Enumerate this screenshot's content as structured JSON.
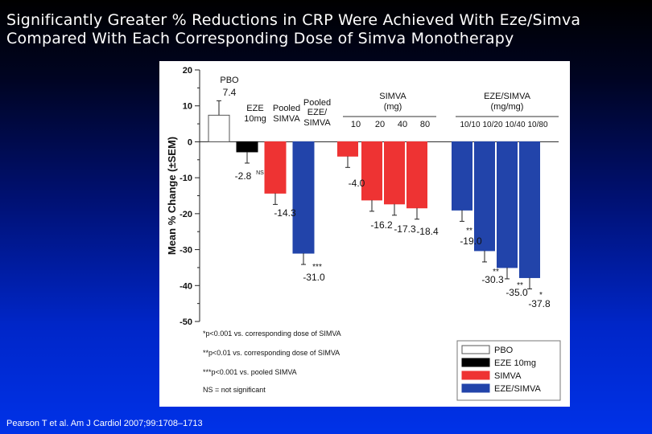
{
  "slide": {
    "title_line1": "Significantly Greater % Reductions in CRP Were Achieved With Eze/Simva",
    "title_line2": "Compared With Each Corresponding Dose of Simva Monotherapy",
    "citation": "Pearson T et al. Am J Cardiol 2007;99:1708–1713"
  },
  "colors": {
    "PBO": "#ffffff",
    "EZE": "#000000",
    "SIMVA": "#ee3333",
    "EZE/SIMVA": "#2244aa"
  },
  "chart_data": {
    "type": "bar",
    "ylabel": "Mean % Change (±SEM)",
    "ylim": [
      -50,
      20
    ],
    "yticks": [
      20,
      10,
      0,
      -10,
      -20,
      -30,
      -40,
      -50
    ],
    "bars": [
      {
        "group": "PBO",
        "category": "PBO",
        "value": 7.4,
        "label": "7.4",
        "sig": ""
      },
      {
        "group": "EZE",
        "category": "EZE 10mg",
        "value": -2.8,
        "label": "-2.8",
        "sig": "NS"
      },
      {
        "group": "SIMVA",
        "category": "Pooled SIMVA",
        "value": -14.3,
        "label": "-14.3",
        "sig": ""
      },
      {
        "group": "EZE/SIMVA",
        "category": "Pooled EZE/SIMVA",
        "value": -31.0,
        "label": "-31.0",
        "sig": "***"
      },
      {
        "group": "SIMVA",
        "category": "10",
        "value": -4.0,
        "label": "-4.0",
        "sig": ""
      },
      {
        "group": "SIMVA",
        "category": "20",
        "value": -16.2,
        "label": "-16.2",
        "sig": ""
      },
      {
        "group": "SIMVA",
        "category": "40",
        "value": -17.3,
        "label": "-17.3",
        "sig": ""
      },
      {
        "group": "SIMVA",
        "category": "80",
        "value": -18.4,
        "label": "-18.4",
        "sig": ""
      },
      {
        "group": "EZE/SIMVA",
        "category": "10/10",
        "value": -19.0,
        "label": "-19.0",
        "sig": "**"
      },
      {
        "group": "EZE/SIMVA",
        "category": "10/20",
        "value": -30.3,
        "label": "-30.3",
        "sig": "**"
      },
      {
        "group": "EZE/SIMVA",
        "category": "10/40",
        "value": -35.0,
        "label": "-35.0",
        "sig": "**"
      },
      {
        "group": "EZE/SIMVA",
        "category": "10/80",
        "value": -37.8,
        "label": "-37.8",
        "sig": "*"
      }
    ],
    "headers": {
      "pbo": "PBO",
      "eze_line1": "EZE",
      "eze_line2": "10mg",
      "pooled_simva_line1": "Pooled",
      "pooled_simva_line2": "SIMVA",
      "pooled_combo_line1": "Pooled",
      "pooled_combo_line2": "EZE/",
      "pooled_combo_line3": "SIMVA",
      "simva_line1": "SIMVA",
      "simva_line2": "(mg)",
      "combo_line1": "EZE/SIMVA",
      "combo_line2": "(mg/mg)"
    },
    "footnotes": [
      "*p<0.001 vs. corresponding dose of SIMVA",
      "**p<0.01 vs. corresponding dose of SIMVA",
      "***p<0.001 vs. pooled SIMVA",
      "NS = not significant"
    ],
    "legend": {
      "placement": "bottom-right",
      "items": [
        {
          "group": "PBO",
          "label": "PBO"
        },
        {
          "group": "EZE",
          "label": "EZE 10mg"
        },
        {
          "group": "SIMVA",
          "label": "SIMVA"
        },
        {
          "group": "EZE/SIMVA",
          "label": "EZE/SIMVA"
        }
      ]
    }
  }
}
